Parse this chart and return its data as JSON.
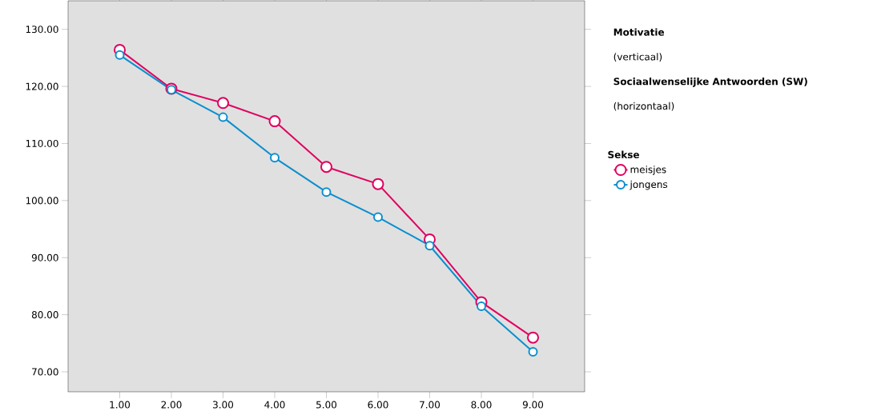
{
  "chart_data": {
    "type": "line",
    "ylabel": "Motivatie",
    "xlabel": "Sociaalwenselijke Antwoorden (SW)",
    "annotations": [
      "(verticaal)",
      "(horizontaal)"
    ],
    "legend_title": "Sekse",
    "legend": "right",
    "marker": "circle",
    "line_style": "solid",
    "grid": false,
    "x": [
      1,
      2,
      3,
      4,
      5,
      6,
      7,
      8,
      9
    ],
    "series": [
      {
        "name": "meisjes",
        "color": "#e0005f",
        "values": [
          126.4,
          119.6,
          117.1,
          113.9,
          105.9,
          102.9,
          93.2,
          82.2,
          76.0
        ]
      },
      {
        "name": "jongens",
        "color": "#0a8fce",
        "values": [
          125.5,
          119.4,
          114.6,
          107.5,
          101.5,
          97.1,
          92.1,
          81.5,
          73.5
        ]
      }
    ],
    "xlim": [
      0,
      10
    ],
    "ylim": [
      66.5,
      135
    ],
    "xticks": [
      {
        "value": 1,
        "label": "1.00"
      },
      {
        "value": 2,
        "label": "2.00"
      },
      {
        "value": 3,
        "label": "3.00"
      },
      {
        "value": 4,
        "label": "4.00"
      },
      {
        "value": 5,
        "label": "5.00"
      },
      {
        "value": 6,
        "label": "6.00"
      },
      {
        "value": 7,
        "label": "7.00"
      },
      {
        "value": 8,
        "label": "8.00"
      },
      {
        "value": 9,
        "label": "9.00"
      }
    ],
    "yticks": [
      {
        "value": 70,
        "label": "70.00"
      },
      {
        "value": 80,
        "label": "80.00"
      },
      {
        "value": 90,
        "label": "90.00"
      },
      {
        "value": 100,
        "label": "100.00"
      },
      {
        "value": 110,
        "label": "110.00"
      },
      {
        "value": 120,
        "label": "120.00"
      },
      {
        "value": 130,
        "label": "130.00"
      }
    ]
  }
}
